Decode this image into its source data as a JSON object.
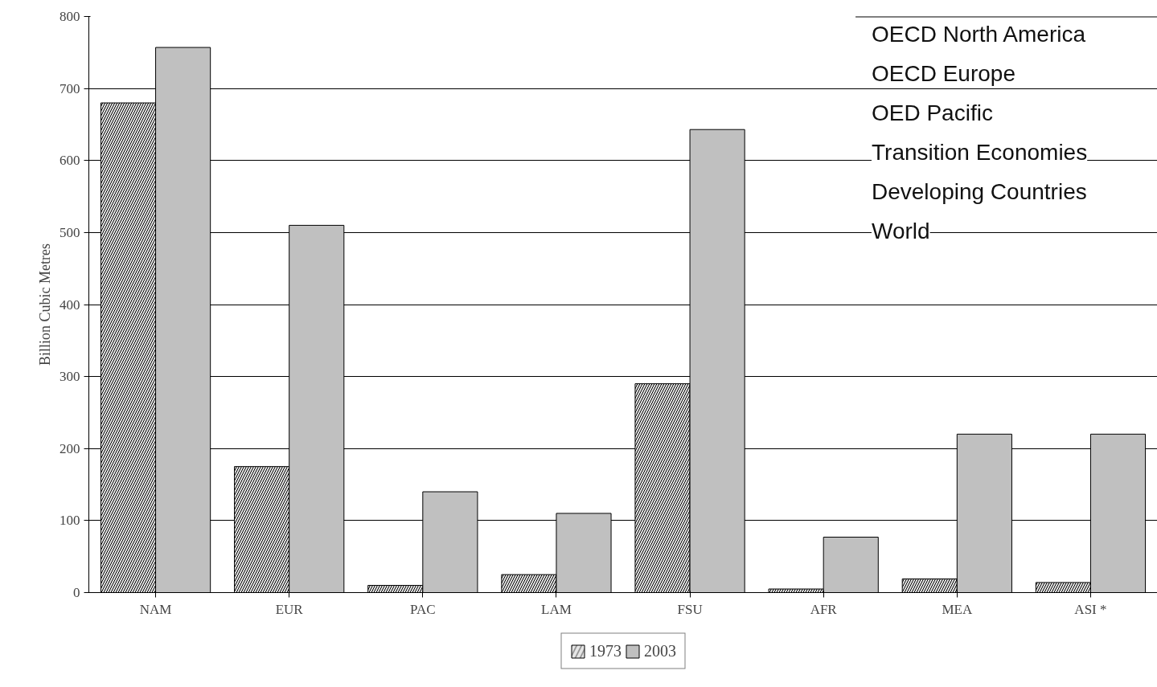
{
  "chart_data": {
    "type": "bar",
    "ylabel": "Billion Cubic Metres",
    "categories": [
      "NAM",
      "EUR",
      "PAC",
      "LAM",
      "FSU",
      "AFR",
      "MEA",
      "ASI *"
    ],
    "series": [
      {
        "name": "1973",
        "color": "#e6e6e6",
        "values": [
          680,
          175,
          10,
          25,
          290,
          5,
          19,
          14
        ]
      },
      {
        "name": "2003",
        "color": "#c0c0c0",
        "values": [
          757,
          510,
          140,
          110,
          643,
          77,
          220,
          220
        ]
      }
    ],
    "ylim": [
      0,
      800
    ],
    "yticks": [
      0,
      100,
      200,
      300,
      400,
      500,
      600,
      700,
      800
    ],
    "grid": "y",
    "legend": "bottom",
    "annotations": [
      "OECD North America",
      "OECD Europe",
      "OED Pacific",
      "Transition Economies",
      "Developing Countries",
      "World"
    ]
  }
}
